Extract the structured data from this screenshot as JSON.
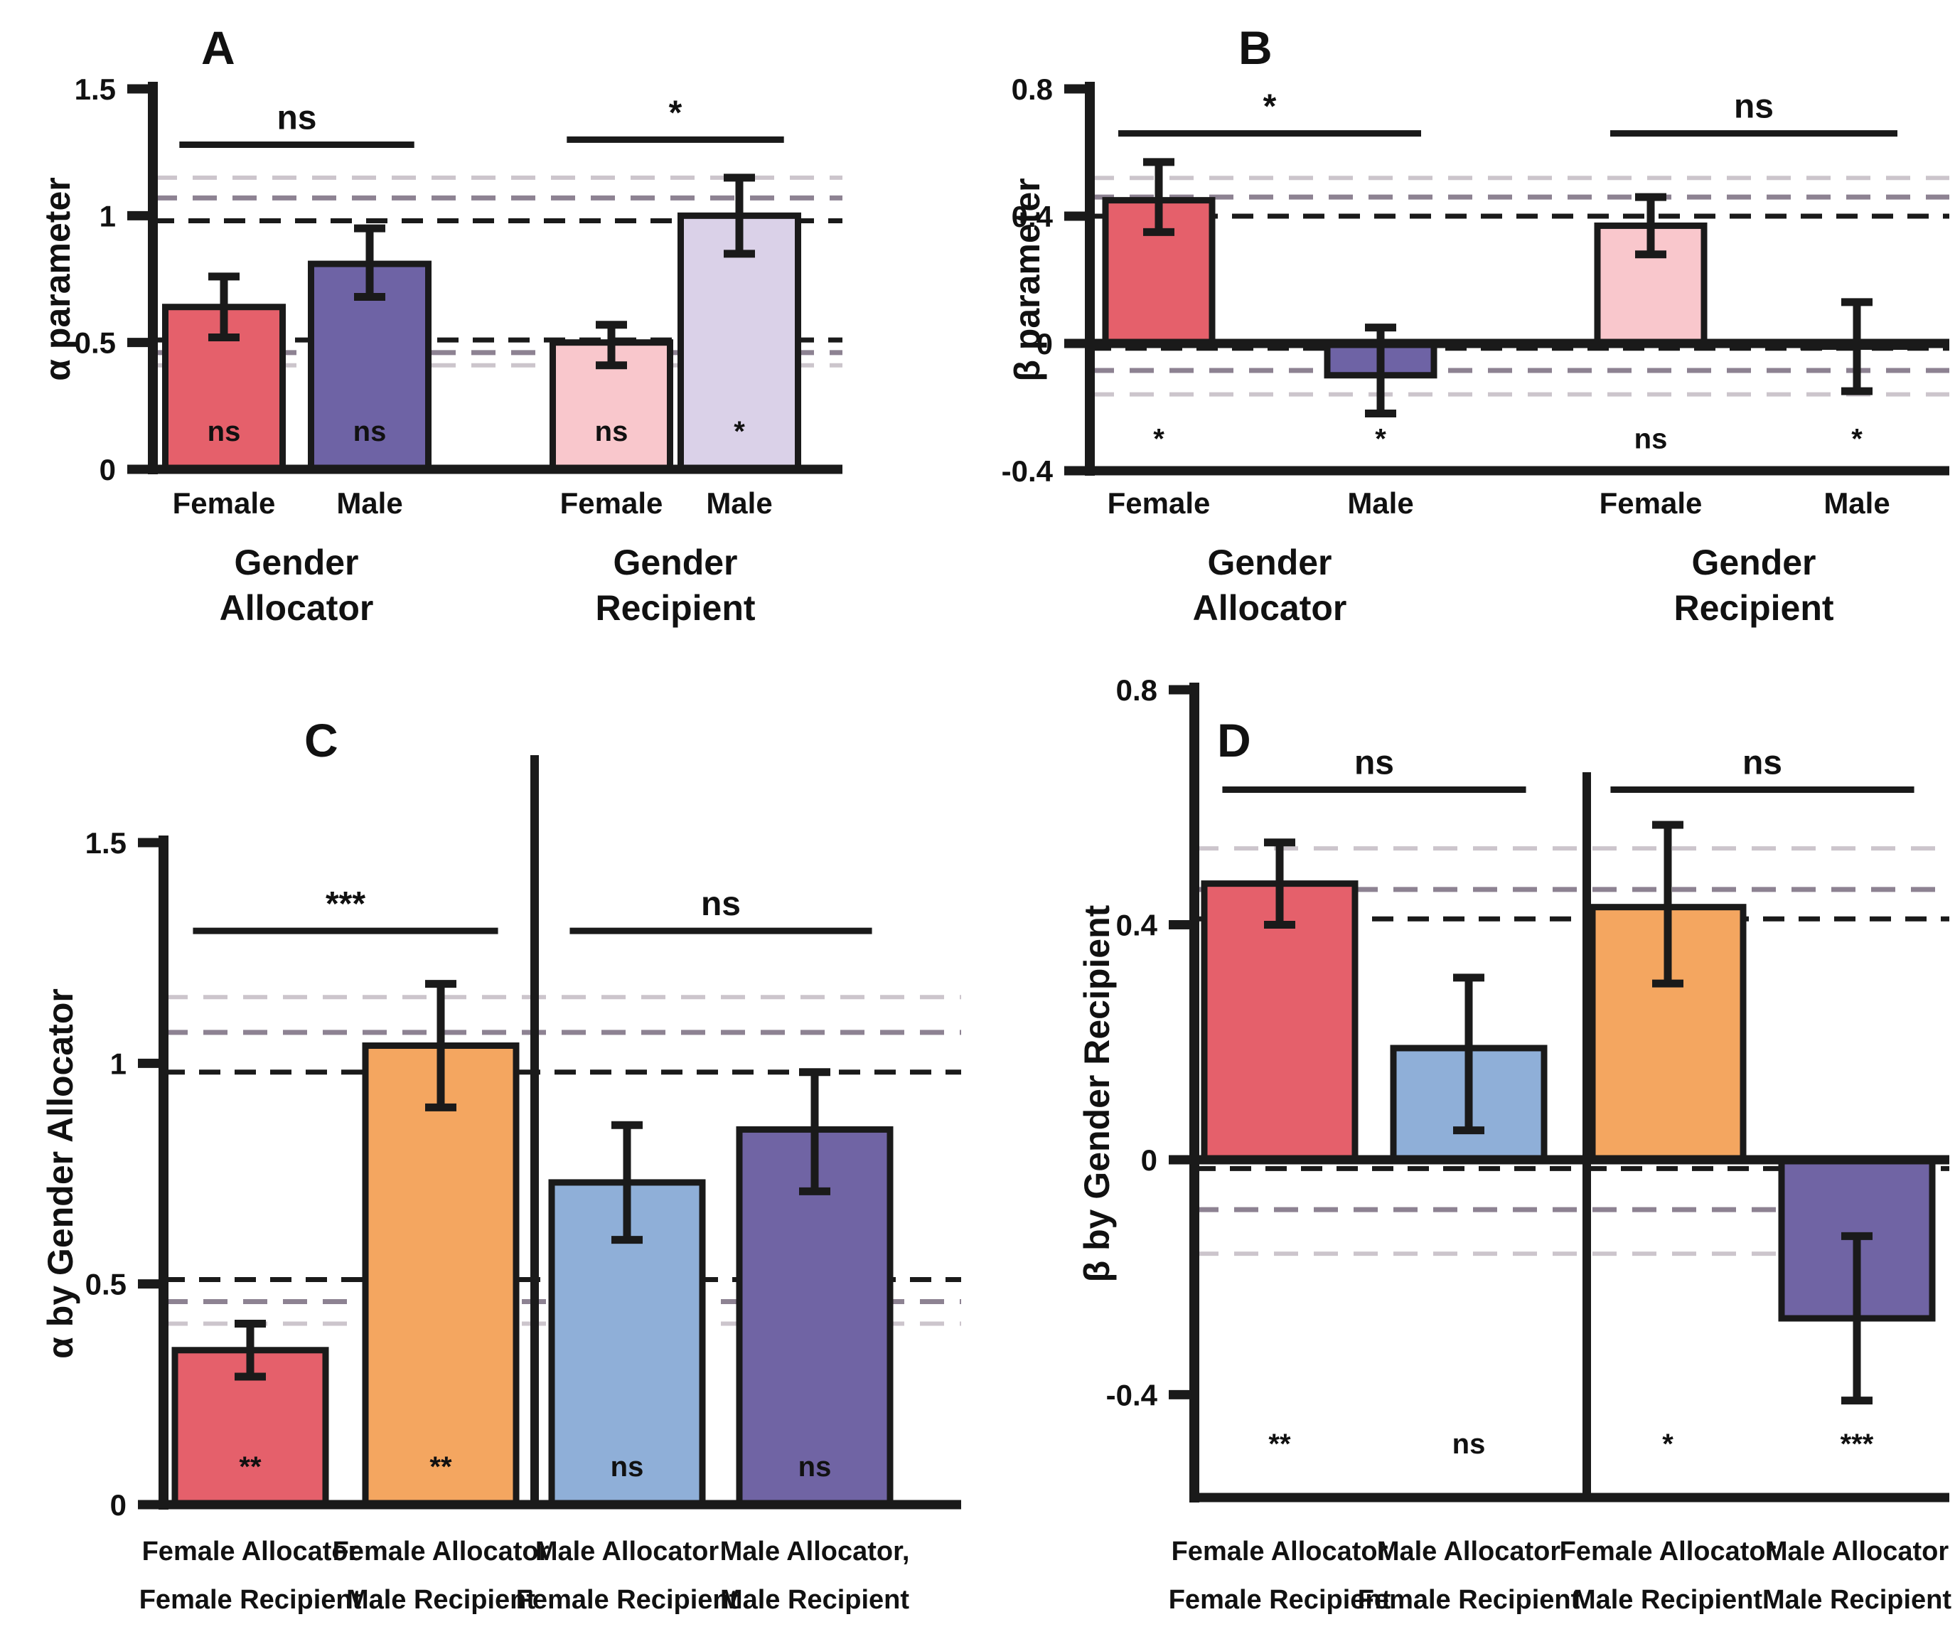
{
  "figure_title": "",
  "chart_data": {
    "type": "bar",
    "legend_position": "none",
    "grid": "dashed-reference-lines",
    "palette": {
      "red": "#E5606B",
      "dark_purple": "#6E63A5",
      "pink": "#F9C7CC",
      "lavender": "#DAD1E8",
      "orange": "#F4A660",
      "light_blue": "#8FAFD8",
      "purple": "#7064A4",
      "line_dark": "#1A1A1A",
      "line_mid": "#8D8292",
      "line_light": "#CCC5CC"
    },
    "panels": [
      {
        "id": "A",
        "letter": "A",
        "ylabel": "α parameter",
        "ylim": [
          0,
          1.5
        ],
        "yticks": [
          0,
          0.5,
          1,
          1.5
        ],
        "ytick_labels": [
          "0",
          "0.5",
          "1",
          "1.5"
        ],
        "ref_lines": [
          {
            "y": 1.15,
            "tone": "light"
          },
          {
            "y": 1.07,
            "tone": "mid"
          },
          {
            "y": 0.98,
            "tone": "dark"
          },
          {
            "y": 0.51,
            "tone": "dark"
          },
          {
            "y": 0.46,
            "tone": "mid"
          },
          {
            "y": 0.41,
            "tone": "light"
          }
        ],
        "bars": [
          {
            "label_lines": [
              "Female"
            ],
            "value": 0.64,
            "err_lo": 0.52,
            "err_hi": 0.76,
            "color": "red",
            "sig": "ns"
          },
          {
            "label_lines": [
              "Male"
            ],
            "value": 0.81,
            "err_lo": 0.68,
            "err_hi": 0.95,
            "color": "dark_purple",
            "sig": "ns"
          },
          {
            "label_lines": [
              "Female"
            ],
            "value": 0.5,
            "err_lo": 0.41,
            "err_hi": 0.57,
            "color": "pink",
            "sig": "ns"
          },
          {
            "label_lines": [
              "Male"
            ],
            "value": 1.0,
            "err_lo": 0.85,
            "err_hi": 1.15,
            "color": "lavender",
            "sig": "*"
          }
        ],
        "sig_position": "inside",
        "groups": [
          {
            "lines": [
              "Gender",
              "Allocator"
            ]
          },
          {
            "lines": [
              "Gender",
              "Recipient"
            ]
          }
        ],
        "brackets": [
          {
            "from": 0,
            "to": 1,
            "label": "ns",
            "y": 1.28
          },
          {
            "from": 2,
            "to": 3,
            "label": "*",
            "y": 1.3
          }
        ],
        "divider": false
      },
      {
        "id": "B",
        "letter": "B",
        "ylabel": "β parameter",
        "ylim": [
          -0.4,
          0.8
        ],
        "yticks": [
          -0.4,
          0,
          0.4,
          0.8
        ],
        "ytick_labels": [
          "-0.4",
          "0",
          "0.4",
          "0.8"
        ],
        "ref_lines": [
          {
            "y": 0.52,
            "tone": "light"
          },
          {
            "y": 0.46,
            "tone": "mid"
          },
          {
            "y": 0.4,
            "tone": "dark"
          },
          {
            "y": -0.015,
            "tone": "dark"
          },
          {
            "y": -0.085,
            "tone": "mid"
          },
          {
            "y": -0.16,
            "tone": "light"
          }
        ],
        "bars": [
          {
            "label_lines": [
              "Female"
            ],
            "value": 0.45,
            "err_lo": 0.35,
            "err_hi": 0.57,
            "color": "red",
            "sig": "*"
          },
          {
            "label_lines": [
              "Male"
            ],
            "value": -0.1,
            "err_lo": -0.22,
            "err_hi": 0.05,
            "color": "dark_purple",
            "sig": "*"
          },
          {
            "label_lines": [
              "Female"
            ],
            "value": 0.37,
            "err_lo": 0.28,
            "err_hi": 0.46,
            "color": "pink",
            "sig": "ns"
          },
          {
            "label_lines": [
              "Male"
            ],
            "value": -0.01,
            "err_lo": -0.15,
            "err_hi": 0.13,
            "color": "lavender",
            "sig": "*"
          }
        ],
        "sig_position": "below",
        "sig_row_y": -0.33,
        "groups": [
          {
            "lines": [
              "Gender",
              "Allocator"
            ]
          },
          {
            "lines": [
              "Gender",
              "Recipient"
            ]
          }
        ],
        "brackets": [
          {
            "from": 0,
            "to": 1,
            "label": "*",
            "y": 0.66
          },
          {
            "from": 2,
            "to": 3,
            "label": "ns",
            "y": 0.66
          }
        ],
        "divider": false
      },
      {
        "id": "C",
        "letter": "C",
        "ylabel": "α by Gender Allocator",
        "ylim": [
          0,
          1.5
        ],
        "yticks": [
          0,
          0.5,
          1,
          1.5
        ],
        "ytick_labels": [
          "0",
          "0.5",
          "1",
          "1.5"
        ],
        "ref_lines": [
          {
            "y": 1.15,
            "tone": "light"
          },
          {
            "y": 1.07,
            "tone": "mid"
          },
          {
            "y": 0.98,
            "tone": "dark"
          },
          {
            "y": 0.51,
            "tone": "dark"
          },
          {
            "y": 0.46,
            "tone": "mid"
          },
          {
            "y": 0.41,
            "tone": "light"
          }
        ],
        "bars": [
          {
            "label_lines": [
              "Female Allocator",
              "Female Recipient"
            ],
            "value": 0.35,
            "err_lo": 0.29,
            "err_hi": 0.41,
            "color": "red",
            "sig": "**"
          },
          {
            "label_lines": [
              "Female Allocator",
              "Male Recipient"
            ],
            "value": 1.04,
            "err_lo": 0.9,
            "err_hi": 1.18,
            "color": "orange",
            "sig": "**"
          },
          {
            "label_lines": [
              "Male Allocator",
              "Female Recipient"
            ],
            "value": 0.73,
            "err_lo": 0.6,
            "err_hi": 0.86,
            "color": "light_blue",
            "sig": "ns"
          },
          {
            "label_lines": [
              "Male Allocator,",
              "Male Recipient"
            ],
            "value": 0.85,
            "err_lo": 0.71,
            "err_hi": 0.98,
            "color": "purple",
            "sig": "ns"
          }
        ],
        "sig_position": "inside",
        "groups": [],
        "brackets": [
          {
            "from": 0,
            "to": 1,
            "label": "***",
            "y": 1.3
          },
          {
            "from": 2,
            "to": 3,
            "label": "ns",
            "y": 1.3
          }
        ],
        "divider": true
      },
      {
        "id": "D",
        "letter": "D",
        "ylabel": "β by Gender  Recipient",
        "ylim": [
          -0.575,
          0.8
        ],
        "yticks": [
          -0.4,
          0,
          0.4,
          0.8
        ],
        "ytick_labels": [
          "-0.4",
          "0",
          "0.4",
          "0.8"
        ],
        "ref_lines": [
          {
            "y": 0.53,
            "tone": "light"
          },
          {
            "y": 0.46,
            "tone": "mid"
          },
          {
            "y": 0.41,
            "tone": "dark"
          },
          {
            "y": -0.015,
            "tone": "dark"
          },
          {
            "y": -0.085,
            "tone": "mid"
          },
          {
            "y": -0.16,
            "tone": "light"
          }
        ],
        "bars": [
          {
            "label_lines": [
              "Female Allocator",
              "Female Recipient"
            ],
            "value": 0.47,
            "err_lo": 0.4,
            "err_hi": 0.54,
            "color": "red",
            "sig": "**"
          },
          {
            "label_lines": [
              "Male Allocator",
              "Female Recipient"
            ],
            "value": 0.19,
            "err_lo": 0.05,
            "err_hi": 0.31,
            "color": "light_blue",
            "sig": "ns"
          },
          {
            "label_lines": [
              "Female Allocator",
              "Male Recipient"
            ],
            "value": 0.43,
            "err_lo": 0.3,
            "err_hi": 0.57,
            "color": "orange",
            "sig": "*"
          },
          {
            "label_lines": [
              "Male Allocator",
              "Male Recipient"
            ],
            "value": -0.27,
            "err_lo": -0.41,
            "err_hi": -0.13,
            "color": "purple",
            "sig": "***"
          }
        ],
        "sig_position": "below",
        "sig_row_y": -0.5,
        "groups": [],
        "brackets": [
          {
            "from": 0,
            "to": 1,
            "label": "ns",
            "y": 0.63
          },
          {
            "from": 2,
            "to": 3,
            "label": "ns",
            "y": 0.63
          }
        ],
        "divider": true
      }
    ]
  }
}
